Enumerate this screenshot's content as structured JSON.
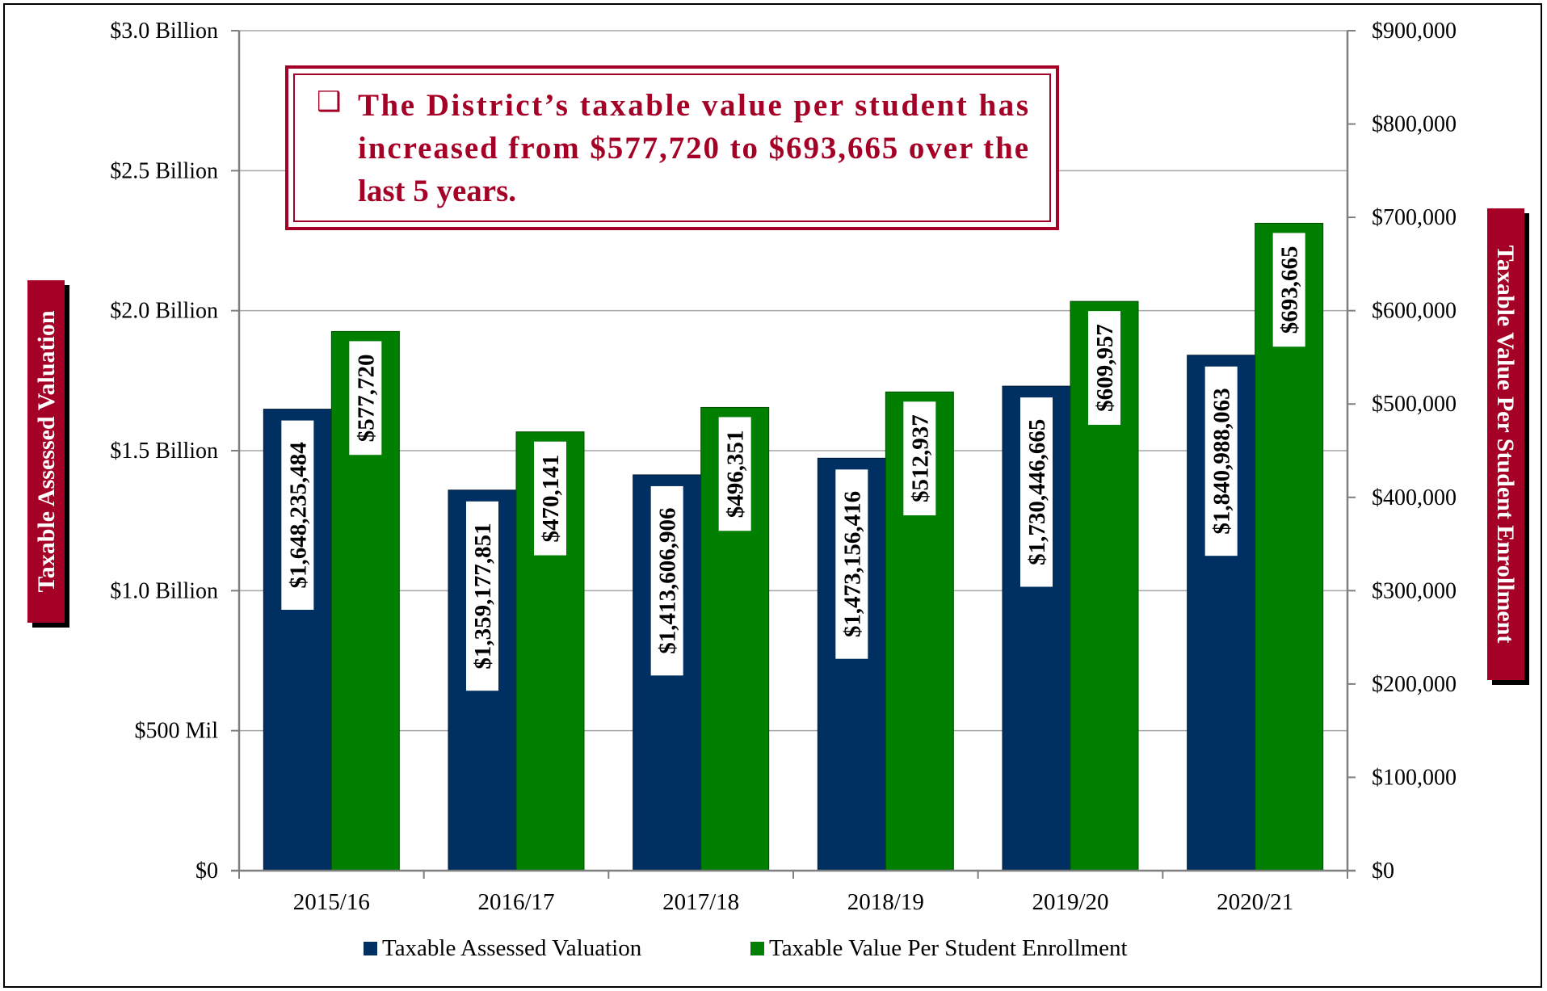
{
  "chart_data": {
    "type": "bar",
    "categories": [
      "2015/16",
      "2016/17",
      "2017/18",
      "2018/19",
      "2019/20",
      "2020/21"
    ],
    "series": [
      {
        "name": "Taxable Assessed Valuation",
        "axis": "left",
        "color": "#002f61",
        "values": [
          1648235484,
          1359177851,
          1413606906,
          1473156416,
          1730446665,
          1840988063
        ],
        "labels": [
          "$1,648,235,484",
          "$1,359,177,851",
          "$1,413,606,906",
          "$1,473,156,416",
          "$1,730,446,665",
          "$1,840,988,063"
        ]
      },
      {
        "name": "Taxable Value Per Student Enrollment",
        "axis": "right",
        "color": "#007f00",
        "values": [
          577720,
          470141,
          496351,
          512937,
          609957,
          693665
        ],
        "labels": [
          "$577,720",
          "$470,141",
          "$496,351",
          "$512,937",
          "$609,957",
          "$693,665"
        ]
      }
    ],
    "ylabel": "Taxable Assessed Valuation",
    "ylabel_right": "Taxable Value Per Student Enrollment",
    "ylim": [
      0,
      3000000000
    ],
    "ylim_right": [
      0,
      900000
    ],
    "yticks": [
      0,
      500000000,
      1000000000,
      1500000000,
      2000000000,
      2500000000,
      3000000000
    ],
    "ytick_labels": [
      "$0",
      "$500 Mil",
      "$1.0 Billion",
      "$1.5 Billion",
      "$2.0 Billion",
      "$2.5 Billion",
      "$3.0 Billion"
    ],
    "yticks_right": [
      0,
      100000,
      200000,
      300000,
      400000,
      500000,
      600000,
      700000,
      800000,
      900000
    ],
    "ytick_labels_right": [
      "$0",
      "$100,000",
      "$200,000",
      "$300,000",
      "$400,000",
      "$500,000",
      "$600,000",
      "$700,000",
      "$800,000",
      "$900,000"
    ],
    "grid": true,
    "legend_position": "bottom",
    "annotation": {
      "bullet": "❑",
      "lines": [
        "The District’s taxable value per student has",
        "increased from $577,720 to $693,665 over the",
        "last 5 years."
      ]
    }
  },
  "colors": {
    "accent": "#a50026",
    "axis_label_bg": "#a50026",
    "axis_label_text": "#ffffff",
    "grid": "#a6a6a6"
  }
}
